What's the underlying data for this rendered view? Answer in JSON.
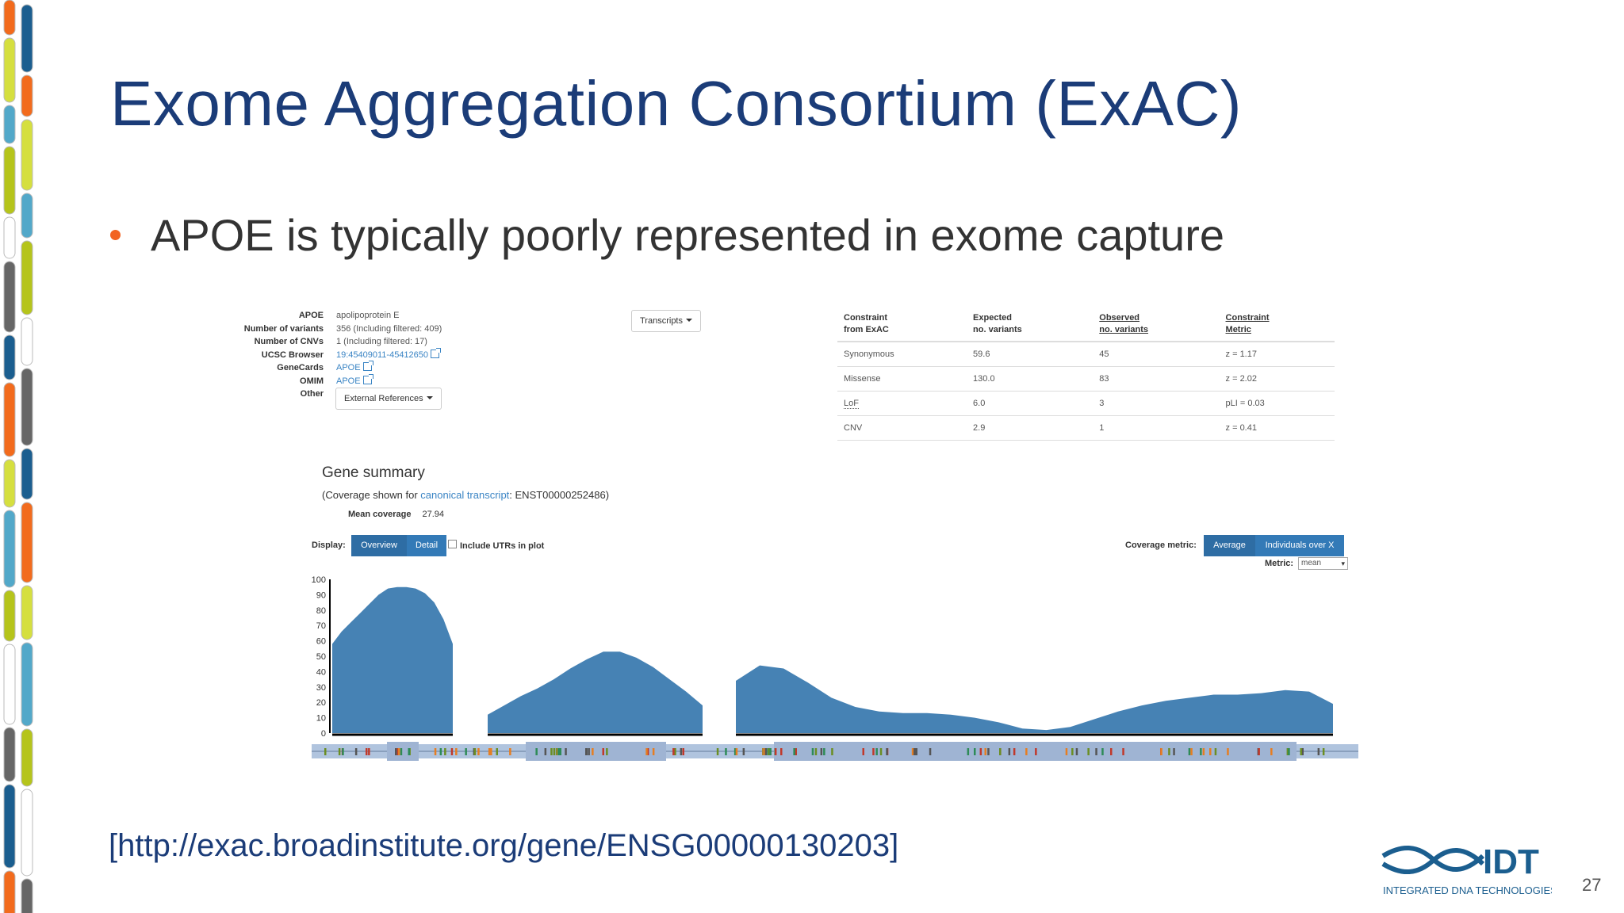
{
  "slide": {
    "title": "Exome Aggregation Consortium (ExAC)",
    "bullet": "APOE is typically poorly represented in exome capture",
    "url": "[http://exac.broadinstitute.org/gene/ENSG00000130203]",
    "page_number": "27",
    "logo_text": "INTEGRATED DNA TECHNOLOGIES",
    "bullet_color": "#f26322",
    "title_color": "#1b3c78"
  },
  "gene_info": {
    "labels": [
      "APOE",
      "Number of variants",
      "Number of CNVs",
      "UCSC Browser",
      "GeneCards",
      "OMIM",
      "Other"
    ],
    "name": "apolipoprotein E",
    "variants": "356 (Including filtered: 409)",
    "cnvs": "1 (Including filtered: 17)",
    "ucsc": "19:45409011-45412650",
    "genecards": "APOE",
    "omim": "APOE",
    "other_button": "External References",
    "transcripts_button": "Transcripts"
  },
  "constraint_table": {
    "headers": [
      "Constraint",
      "from ExAC",
      "Expected",
      "no. variants",
      "Observed",
      "no. variants",
      "Constraint",
      "Metric"
    ],
    "rows": [
      [
        "Synonymous",
        "59.6",
        "45",
        "z = 1.17"
      ],
      [
        "Missense",
        "130.0",
        "83",
        "z = 2.02"
      ],
      [
        "LoF",
        "6.0",
        "3",
        "pLI = 0.03"
      ],
      [
        "CNV",
        "2.9",
        "1",
        "z = 0.41"
      ]
    ]
  },
  "gene_summary": {
    "title": "Gene summary",
    "coverage_prefix": "(Coverage shown for ",
    "coverage_link": "canonical transcript",
    "coverage_suffix": ": ENST00000252486)",
    "mean_coverage_label": "Mean coverage",
    "mean_coverage_value": "27.94"
  },
  "controls": {
    "display_label": "Display:",
    "overview": "Overview",
    "detail": "Detail",
    "include_utrs": "Include UTRs in plot",
    "coverage_metric_label": "Coverage metric:",
    "average": "Average",
    "individuals": "Individuals over X",
    "metric_label": "Metric:",
    "metric_value": "mean"
  },
  "chart_data": {
    "type": "area",
    "y_ticks": [
      "100",
      "90",
      "80",
      "70",
      "60",
      "50",
      "40",
      "30",
      "20",
      "10",
      "0"
    ],
    "ylim": [
      0,
      100
    ],
    "fill_color": "#4682b4",
    "exons": [
      {
        "name": "exon-1",
        "values": [
          58,
          66,
          72,
          78,
          84,
          90,
          94,
          95,
          95,
          94,
          91,
          85,
          74,
          58
        ]
      },
      {
        "name": "exon-2",
        "values": [
          12,
          18,
          24,
          29,
          35,
          42,
          48,
          53,
          53,
          49,
          43,
          35,
          27,
          18
        ]
      },
      {
        "name": "exon-3",
        "values": [
          34,
          44,
          42,
          33,
          23,
          17,
          14,
          13,
          13,
          12,
          10,
          7,
          3,
          2,
          4,
          9,
          14,
          18,
          21,
          23,
          25,
          25,
          26,
          28,
          27,
          19
        ]
      }
    ]
  }
}
